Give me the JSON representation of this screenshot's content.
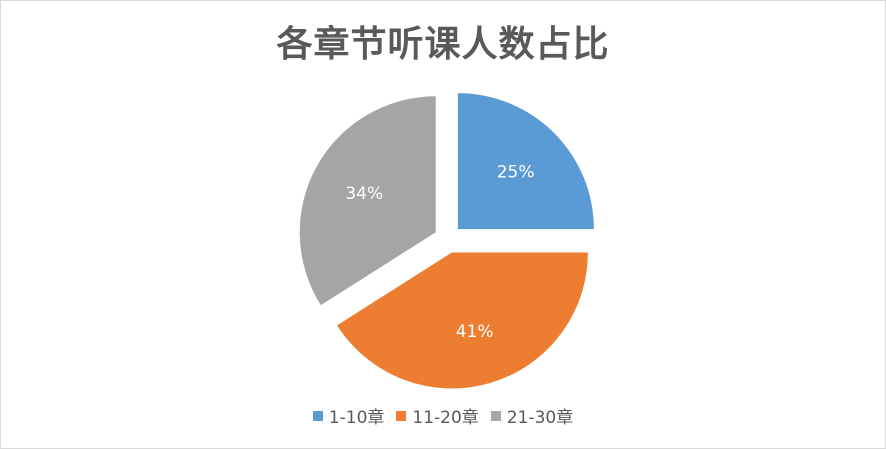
{
  "chart_data": {
    "type": "pie",
    "title": "各章节听课人数占比",
    "categories": [
      "1-10章",
      "11-20章",
      "21-30章"
    ],
    "values": [
      25,
      41,
      34
    ],
    "labels": [
      "25%",
      "41%",
      "34%"
    ],
    "colors": [
      "#5b9bd5",
      "#ed7d31",
      "#a5a5a5"
    ],
    "exploded": true,
    "legend_position": "bottom"
  }
}
